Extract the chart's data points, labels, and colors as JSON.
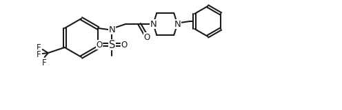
{
  "background_color": "#ffffff",
  "line_color": "#1a1a1a",
  "line_width": 1.5,
  "font_size": 8.5,
  "figsize": [
    4.96,
    1.6
  ],
  "dpi": 100,
  "xlim": [
    0,
    496
  ],
  "ylim": [
    0,
    160
  ]
}
